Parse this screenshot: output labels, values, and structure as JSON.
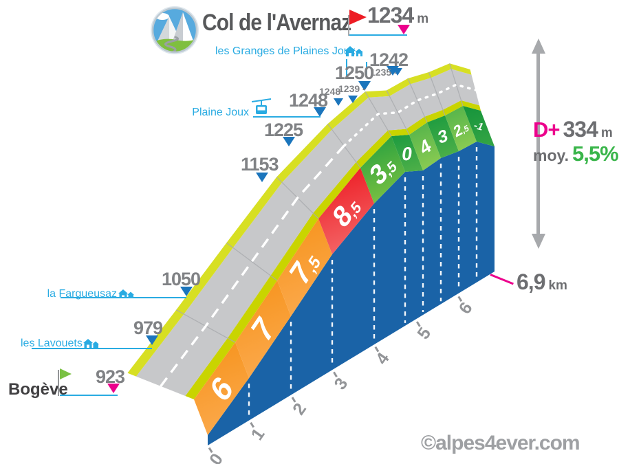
{
  "header": {
    "title": "Col de l'Avernaz",
    "summit_altitude": "1234",
    "summit_unit": "m"
  },
  "stats": {
    "dplus_label": "D+",
    "dplus_value": "334",
    "dplus_unit": "m",
    "avg_label": "moy.",
    "avg_value": "5,5%"
  },
  "distance": {
    "value": "6,9",
    "unit": "km"
  },
  "watermark": "©alpes4ever.com",
  "start": {
    "name": "Bogève",
    "altitude": "923"
  },
  "places": {
    "granges": "les Granges de Plaines Joux",
    "plaine_joux": "Plaine Joux",
    "fargueusaz": "la Fargueusaz",
    "lavouets": "les Lavouets"
  },
  "altitude_markers": {
    "a1242": "1242",
    "a1250": "1250",
    "a1235": "1235 -",
    "a1248": "1248",
    "a1248s": "1248",
    "a1239": "1239 -",
    "a1225": "1225",
    "a1153": "1153",
    "a1050": "1050",
    "a979": "979"
  },
  "km_ticks": [
    "0",
    "1",
    "2",
    "3",
    "4",
    "5",
    "6"
  ],
  "profile": {
    "segments": [
      {
        "grade": "6",
        "color": "#f7941e",
        "color_light": "#fbaa4e"
      },
      {
        "grade": "7",
        "color": "#f7941e",
        "color_light": "#fbaa4e"
      },
      {
        "grade": "7,5",
        "color": "#f7941e",
        "color_light": "#fbaa4e"
      },
      {
        "grade": "8,5",
        "color": "#ed1c24",
        "color_light": "#f4696a"
      },
      {
        "grade": "3,5",
        "color": "#29a13f",
        "color_light": "#7dc242"
      },
      {
        "grade": "0",
        "color": "#1e9c40",
        "color_light": "#4caf48"
      },
      {
        "grade": "4",
        "color": "#55b44b",
        "color_light": "#8ccc52"
      },
      {
        "grade": "3",
        "color": "#1e9c40",
        "color_light": "#4caf48"
      },
      {
        "grade": "2,5",
        "color": "#55b44b",
        "color_light": "#8ccc52"
      },
      {
        "grade": "-1",
        "color": "#17953c",
        "color_light": "#33a444"
      }
    ],
    "colors": {
      "road": "#c7c8ca",
      "verge": "#c9d400",
      "verge_top": "#d7df23",
      "wall": "#1a63a7",
      "center_dash": "#ffffff"
    }
  },
  "colors": {
    "cyan": "#29abe2",
    "magenta": "#ec008c",
    "marker_blue": "#1b75bc",
    "gray_text": "#808285",
    "dark_text": "#57585a",
    "green": "#39b54a",
    "flag_green": "#7ac143",
    "flag_red": "#ed1c24",
    "arrow_gray": "#a7a9ac"
  }
}
